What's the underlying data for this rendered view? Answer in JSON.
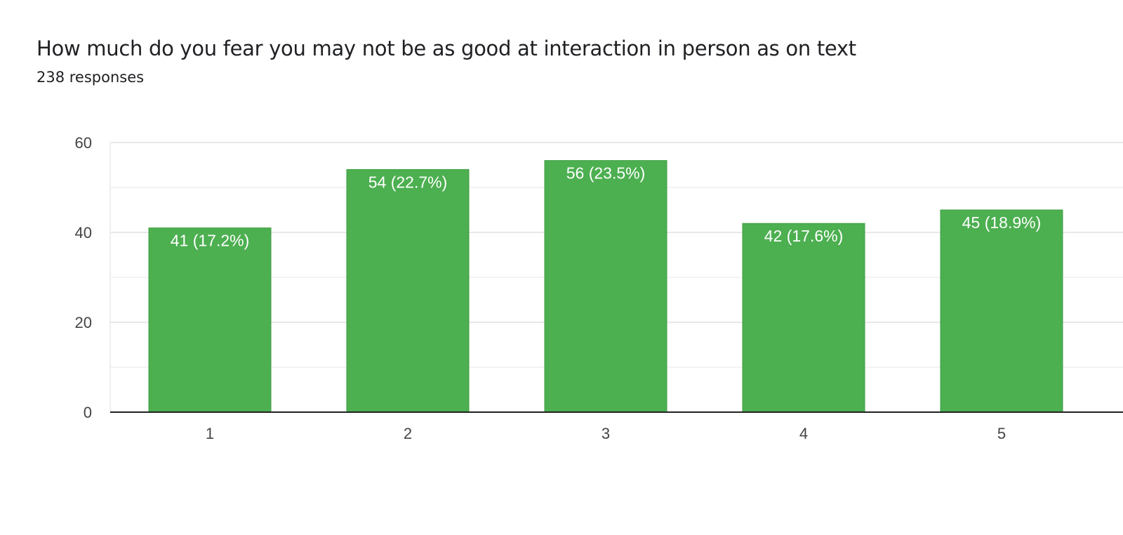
{
  "chart_data": {
    "type": "bar",
    "title": "How much do you fear you may not be as good at interaction in person as on text",
    "subtitle": "238 responses",
    "categories": [
      "1",
      "2",
      "3",
      "4",
      "5"
    ],
    "values": [
      41,
      54,
      56,
      42,
      45
    ],
    "data_labels": [
      "41 (17.2%)",
      "54 (22.7%)",
      "56 (23.5%)",
      "42 (17.6%)",
      "45 (18.9%)"
    ],
    "ylim": [
      0,
      60
    ],
    "yticks": [
      0,
      20,
      40,
      60
    ],
    "grid": true,
    "legend": "none",
    "colors": {
      "bar": "#4caf50",
      "bar_edge": "#3f9e43",
      "grid": "#eeeeee",
      "axis": "#222222",
      "text": "#202124"
    }
  }
}
